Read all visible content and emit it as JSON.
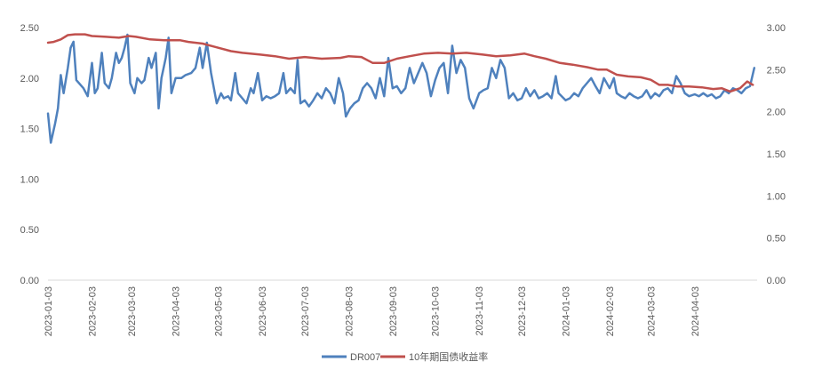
{
  "chart_data": {
    "type": "line",
    "title": "",
    "xlabel": "",
    "ylabel": "",
    "y_left": {
      "range": [
        0,
        2.5
      ],
      "ticks": [
        "0.00",
        "0.50",
        "1.00",
        "1.50",
        "2.00",
        "2.50"
      ]
    },
    "y_right": {
      "range": [
        0,
        3.0
      ],
      "ticks": [
        "0.00",
        "0.50",
        "1.00",
        "1.50",
        "2.00",
        "2.50",
        "3.00"
      ]
    },
    "x_range": [
      "2023-01-03",
      "2024-05-17"
    ],
    "x_ticks": [
      "2023-01-03",
      "2023-02-03",
      "2023-03-03",
      "2023-04-03",
      "2023-05-03",
      "2023-06-03",
      "2023-07-03",
      "2023-08-03",
      "2023-09-03",
      "2023-10-03",
      "2023-11-03",
      "2023-12-03",
      "2024-01-03",
      "2024-02-03",
      "2024-03-03",
      "2024-04-03"
    ],
    "grid": false,
    "legend_position": "bottom",
    "series": [
      {
        "name": "DR007",
        "axis": "left",
        "color": "#4f81bd",
        "points": [
          [
            "2023-01-03",
            1.65
          ],
          [
            "2023-01-05",
            1.36
          ],
          [
            "2023-01-08",
            1.55
          ],
          [
            "2023-01-10",
            1.7
          ],
          [
            "2023-01-12",
            2.03
          ],
          [
            "2023-01-14",
            1.85
          ],
          [
            "2023-01-17",
            2.1
          ],
          [
            "2023-01-19",
            2.3
          ],
          [
            "2023-01-21",
            2.36
          ],
          [
            "2023-01-23",
            1.98
          ],
          [
            "2023-01-28",
            1.9
          ],
          [
            "2023-01-31",
            1.82
          ],
          [
            "2023-02-03",
            2.15
          ],
          [
            "2023-02-05",
            1.85
          ],
          [
            "2023-02-07",
            1.9
          ],
          [
            "2023-02-10",
            2.25
          ],
          [
            "2023-02-12",
            1.95
          ],
          [
            "2023-02-15",
            1.9
          ],
          [
            "2023-02-17",
            2.0
          ],
          [
            "2023-02-20",
            2.25
          ],
          [
            "2023-02-22",
            2.15
          ],
          [
            "2023-02-24",
            2.2
          ],
          [
            "2023-02-26",
            2.3
          ],
          [
            "2023-02-28",
            2.43
          ],
          [
            "2023-03-02",
            1.95
          ],
          [
            "2023-03-05",
            1.85
          ],
          [
            "2023-03-07",
            2.0
          ],
          [
            "2023-03-10",
            1.95
          ],
          [
            "2023-03-12",
            1.98
          ],
          [
            "2023-03-15",
            2.2
          ],
          [
            "2023-03-17",
            2.1
          ],
          [
            "2023-03-20",
            2.25
          ],
          [
            "2023-03-22",
            1.7
          ],
          [
            "2023-03-24",
            2.0
          ],
          [
            "2023-03-27",
            2.2
          ],
          [
            "2023-03-29",
            2.4
          ],
          [
            "2023-03-31",
            1.85
          ],
          [
            "2023-04-03",
            2.0
          ],
          [
            "2023-04-07",
            2.0
          ],
          [
            "2023-04-10",
            2.03
          ],
          [
            "2023-04-14",
            2.05
          ],
          [
            "2023-04-17",
            2.1
          ],
          [
            "2023-04-20",
            2.3
          ],
          [
            "2023-04-22",
            2.1
          ],
          [
            "2023-04-25",
            2.35
          ],
          [
            "2023-04-28",
            2.05
          ],
          [
            "2023-05-02",
            1.75
          ],
          [
            "2023-05-05",
            1.85
          ],
          [
            "2023-05-07",
            1.8
          ],
          [
            "2023-05-10",
            1.82
          ],
          [
            "2023-05-12",
            1.78
          ],
          [
            "2023-05-15",
            2.05
          ],
          [
            "2023-05-17",
            1.85
          ],
          [
            "2023-05-20",
            1.8
          ],
          [
            "2023-05-23",
            1.75
          ],
          [
            "2023-05-26",
            1.9
          ],
          [
            "2023-05-28",
            1.85
          ],
          [
            "2023-05-31",
            2.05
          ],
          [
            "2023-06-03",
            1.78
          ],
          [
            "2023-06-06",
            1.82
          ],
          [
            "2023-06-09",
            1.8
          ],
          [
            "2023-06-12",
            1.82
          ],
          [
            "2023-06-15",
            1.85
          ],
          [
            "2023-06-18",
            2.05
          ],
          [
            "2023-06-20",
            1.85
          ],
          [
            "2023-06-23",
            1.9
          ],
          [
            "2023-06-26",
            1.85
          ],
          [
            "2023-06-28",
            2.18
          ],
          [
            "2023-06-30",
            1.75
          ],
          [
            "2023-07-03",
            1.78
          ],
          [
            "2023-07-06",
            1.72
          ],
          [
            "2023-07-09",
            1.78
          ],
          [
            "2023-07-12",
            1.85
          ],
          [
            "2023-07-15",
            1.8
          ],
          [
            "2023-07-18",
            1.9
          ],
          [
            "2023-07-21",
            1.85
          ],
          [
            "2023-07-24",
            1.75
          ],
          [
            "2023-07-27",
            2.0
          ],
          [
            "2023-07-30",
            1.85
          ],
          [
            "2023-08-01",
            1.62
          ],
          [
            "2023-08-04",
            1.7
          ],
          [
            "2023-08-07",
            1.75
          ],
          [
            "2023-08-10",
            1.78
          ],
          [
            "2023-08-13",
            1.9
          ],
          [
            "2023-08-16",
            1.95
          ],
          [
            "2023-08-19",
            1.9
          ],
          [
            "2023-08-22",
            1.8
          ],
          [
            "2023-08-25",
            2.0
          ],
          [
            "2023-08-28",
            1.82
          ],
          [
            "2023-08-31",
            2.2
          ],
          [
            "2023-09-03",
            1.9
          ],
          [
            "2023-09-06",
            1.92
          ],
          [
            "2023-09-09",
            1.85
          ],
          [
            "2023-09-12",
            1.9
          ],
          [
            "2023-09-15",
            2.1
          ],
          [
            "2023-09-18",
            1.95
          ],
          [
            "2023-09-21",
            2.05
          ],
          [
            "2023-09-24",
            2.15
          ],
          [
            "2023-09-27",
            2.05
          ],
          [
            "2023-09-30",
            1.82
          ],
          [
            "2023-10-03",
            1.98
          ],
          [
            "2023-10-06",
            2.1
          ],
          [
            "2023-10-09",
            2.15
          ],
          [
            "2023-10-12",
            1.85
          ],
          [
            "2023-10-15",
            2.32
          ],
          [
            "2023-10-18",
            2.05
          ],
          [
            "2023-10-21",
            2.18
          ],
          [
            "2023-10-24",
            2.1
          ],
          [
            "2023-10-27",
            1.8
          ],
          [
            "2023-10-30",
            1.7
          ],
          [
            "2023-11-03",
            1.85
          ],
          [
            "2023-11-06",
            1.88
          ],
          [
            "2023-11-09",
            1.9
          ],
          [
            "2023-11-12",
            2.1
          ],
          [
            "2023-11-15",
            2.0
          ],
          [
            "2023-11-18",
            2.18
          ],
          [
            "2023-11-21",
            2.1
          ],
          [
            "2023-11-24",
            1.8
          ],
          [
            "2023-11-27",
            1.85
          ],
          [
            "2023-11-30",
            1.78
          ],
          [
            "2023-12-03",
            1.8
          ],
          [
            "2023-12-06",
            1.9
          ],
          [
            "2023-12-09",
            1.82
          ],
          [
            "2023-12-12",
            1.88
          ],
          [
            "2023-12-15",
            1.8
          ],
          [
            "2023-12-18",
            1.82
          ],
          [
            "2023-12-21",
            1.85
          ],
          [
            "2023-12-24",
            1.8
          ],
          [
            "2023-12-27",
            2.02
          ],
          [
            "2023-12-29",
            1.85
          ],
          [
            "2024-01-03",
            1.78
          ],
          [
            "2024-01-06",
            1.8
          ],
          [
            "2024-01-09",
            1.85
          ],
          [
            "2024-01-12",
            1.82
          ],
          [
            "2024-01-15",
            1.9
          ],
          [
            "2024-01-18",
            1.95
          ],
          [
            "2024-01-21",
            2.0
          ],
          [
            "2024-01-24",
            1.92
          ],
          [
            "2024-01-27",
            1.85
          ],
          [
            "2024-01-30",
            2.0
          ],
          [
            "2024-02-03",
            1.9
          ],
          [
            "2024-02-06",
            2.0
          ],
          [
            "2024-02-08",
            1.85
          ],
          [
            "2024-02-11",
            1.82
          ],
          [
            "2024-02-14",
            1.8
          ],
          [
            "2024-02-17",
            1.85
          ],
          [
            "2024-02-20",
            1.82
          ],
          [
            "2024-02-23",
            1.8
          ],
          [
            "2024-02-26",
            1.82
          ],
          [
            "2024-02-29",
            1.88
          ],
          [
            "2024-03-03",
            1.8
          ],
          [
            "2024-03-06",
            1.85
          ],
          [
            "2024-03-09",
            1.82
          ],
          [
            "2024-03-12",
            1.88
          ],
          [
            "2024-03-15",
            1.9
          ],
          [
            "2024-03-18",
            1.85
          ],
          [
            "2024-03-21",
            2.02
          ],
          [
            "2024-03-24",
            1.95
          ],
          [
            "2024-03-27",
            1.85
          ],
          [
            "2024-03-30",
            1.82
          ],
          [
            "2024-04-03",
            1.84
          ],
          [
            "2024-04-06",
            1.82
          ],
          [
            "2024-04-09",
            1.85
          ],
          [
            "2024-04-12",
            1.82
          ],
          [
            "2024-04-15",
            1.84
          ],
          [
            "2024-04-18",
            1.8
          ],
          [
            "2024-04-21",
            1.82
          ],
          [
            "2024-04-24",
            1.88
          ],
          [
            "2024-04-27",
            1.85
          ],
          [
            "2024-04-30",
            1.9
          ],
          [
            "2024-05-03",
            1.88
          ],
          [
            "2024-05-06",
            1.85
          ],
          [
            "2024-05-09",
            1.9
          ],
          [
            "2024-05-12",
            1.92
          ],
          [
            "2024-05-15",
            2.1
          ]
        ]
      },
      {
        "name": "10年期国债收益率",
        "axis": "right",
        "color": "#c0504d",
        "points": [
          [
            "2023-01-03",
            2.82
          ],
          [
            "2023-01-07",
            2.83
          ],
          [
            "2023-01-12",
            2.86
          ],
          [
            "2023-01-17",
            2.91
          ],
          [
            "2023-01-22",
            2.92
          ],
          [
            "2023-01-29",
            2.92
          ],
          [
            "2023-02-03",
            2.9
          ],
          [
            "2023-02-13",
            2.89
          ],
          [
            "2023-02-22",
            2.88
          ],
          [
            "2023-03-01",
            2.9
          ],
          [
            "2023-03-06",
            2.89
          ],
          [
            "2023-03-16",
            2.86
          ],
          [
            "2023-03-26",
            2.85
          ],
          [
            "2023-04-06",
            2.85
          ],
          [
            "2023-04-12",
            2.83
          ],
          [
            "2023-04-22",
            2.81
          ],
          [
            "2023-05-01",
            2.77
          ],
          [
            "2023-05-12",
            2.72
          ],
          [
            "2023-05-20",
            2.7
          ],
          [
            "2023-06-01",
            2.68
          ],
          [
            "2023-06-12",
            2.66
          ],
          [
            "2023-06-22",
            2.63
          ],
          [
            "2023-07-03",
            2.65
          ],
          [
            "2023-07-15",
            2.63
          ],
          [
            "2023-07-28",
            2.64
          ],
          [
            "2023-08-03",
            2.66
          ],
          [
            "2023-08-12",
            2.65
          ],
          [
            "2023-08-20",
            2.58
          ],
          [
            "2023-08-28",
            2.58
          ],
          [
            "2023-09-06",
            2.63
          ],
          [
            "2023-09-15",
            2.66
          ],
          [
            "2023-09-25",
            2.69
          ],
          [
            "2023-10-05",
            2.7
          ],
          [
            "2023-10-15",
            2.69
          ],
          [
            "2023-10-25",
            2.7
          ],
          [
            "2023-11-05",
            2.68
          ],
          [
            "2023-11-15",
            2.66
          ],
          [
            "2023-11-25",
            2.67
          ],
          [
            "2023-12-05",
            2.69
          ],
          [
            "2023-12-12",
            2.66
          ],
          [
            "2023-12-20",
            2.63
          ],
          [
            "2023-12-30",
            2.58
          ],
          [
            "2024-01-08",
            2.56
          ],
          [
            "2024-01-18",
            2.53
          ],
          [
            "2024-01-26",
            2.5
          ],
          [
            "2024-02-01",
            2.5
          ],
          [
            "2024-02-08",
            2.44
          ],
          [
            "2024-02-16",
            2.42
          ],
          [
            "2024-02-25",
            2.41
          ],
          [
            "2024-03-03",
            2.38
          ],
          [
            "2024-03-09",
            2.32
          ],
          [
            "2024-03-15",
            2.32
          ],
          [
            "2024-03-22",
            2.3
          ],
          [
            "2024-03-30",
            2.3
          ],
          [
            "2024-04-08",
            2.29
          ],
          [
            "2024-04-16",
            2.27
          ],
          [
            "2024-04-22",
            2.28
          ],
          [
            "2024-04-28",
            2.24
          ],
          [
            "2024-05-05",
            2.28
          ],
          [
            "2024-05-10",
            2.36
          ],
          [
            "2024-05-14",
            2.32
          ]
        ]
      }
    ]
  }
}
